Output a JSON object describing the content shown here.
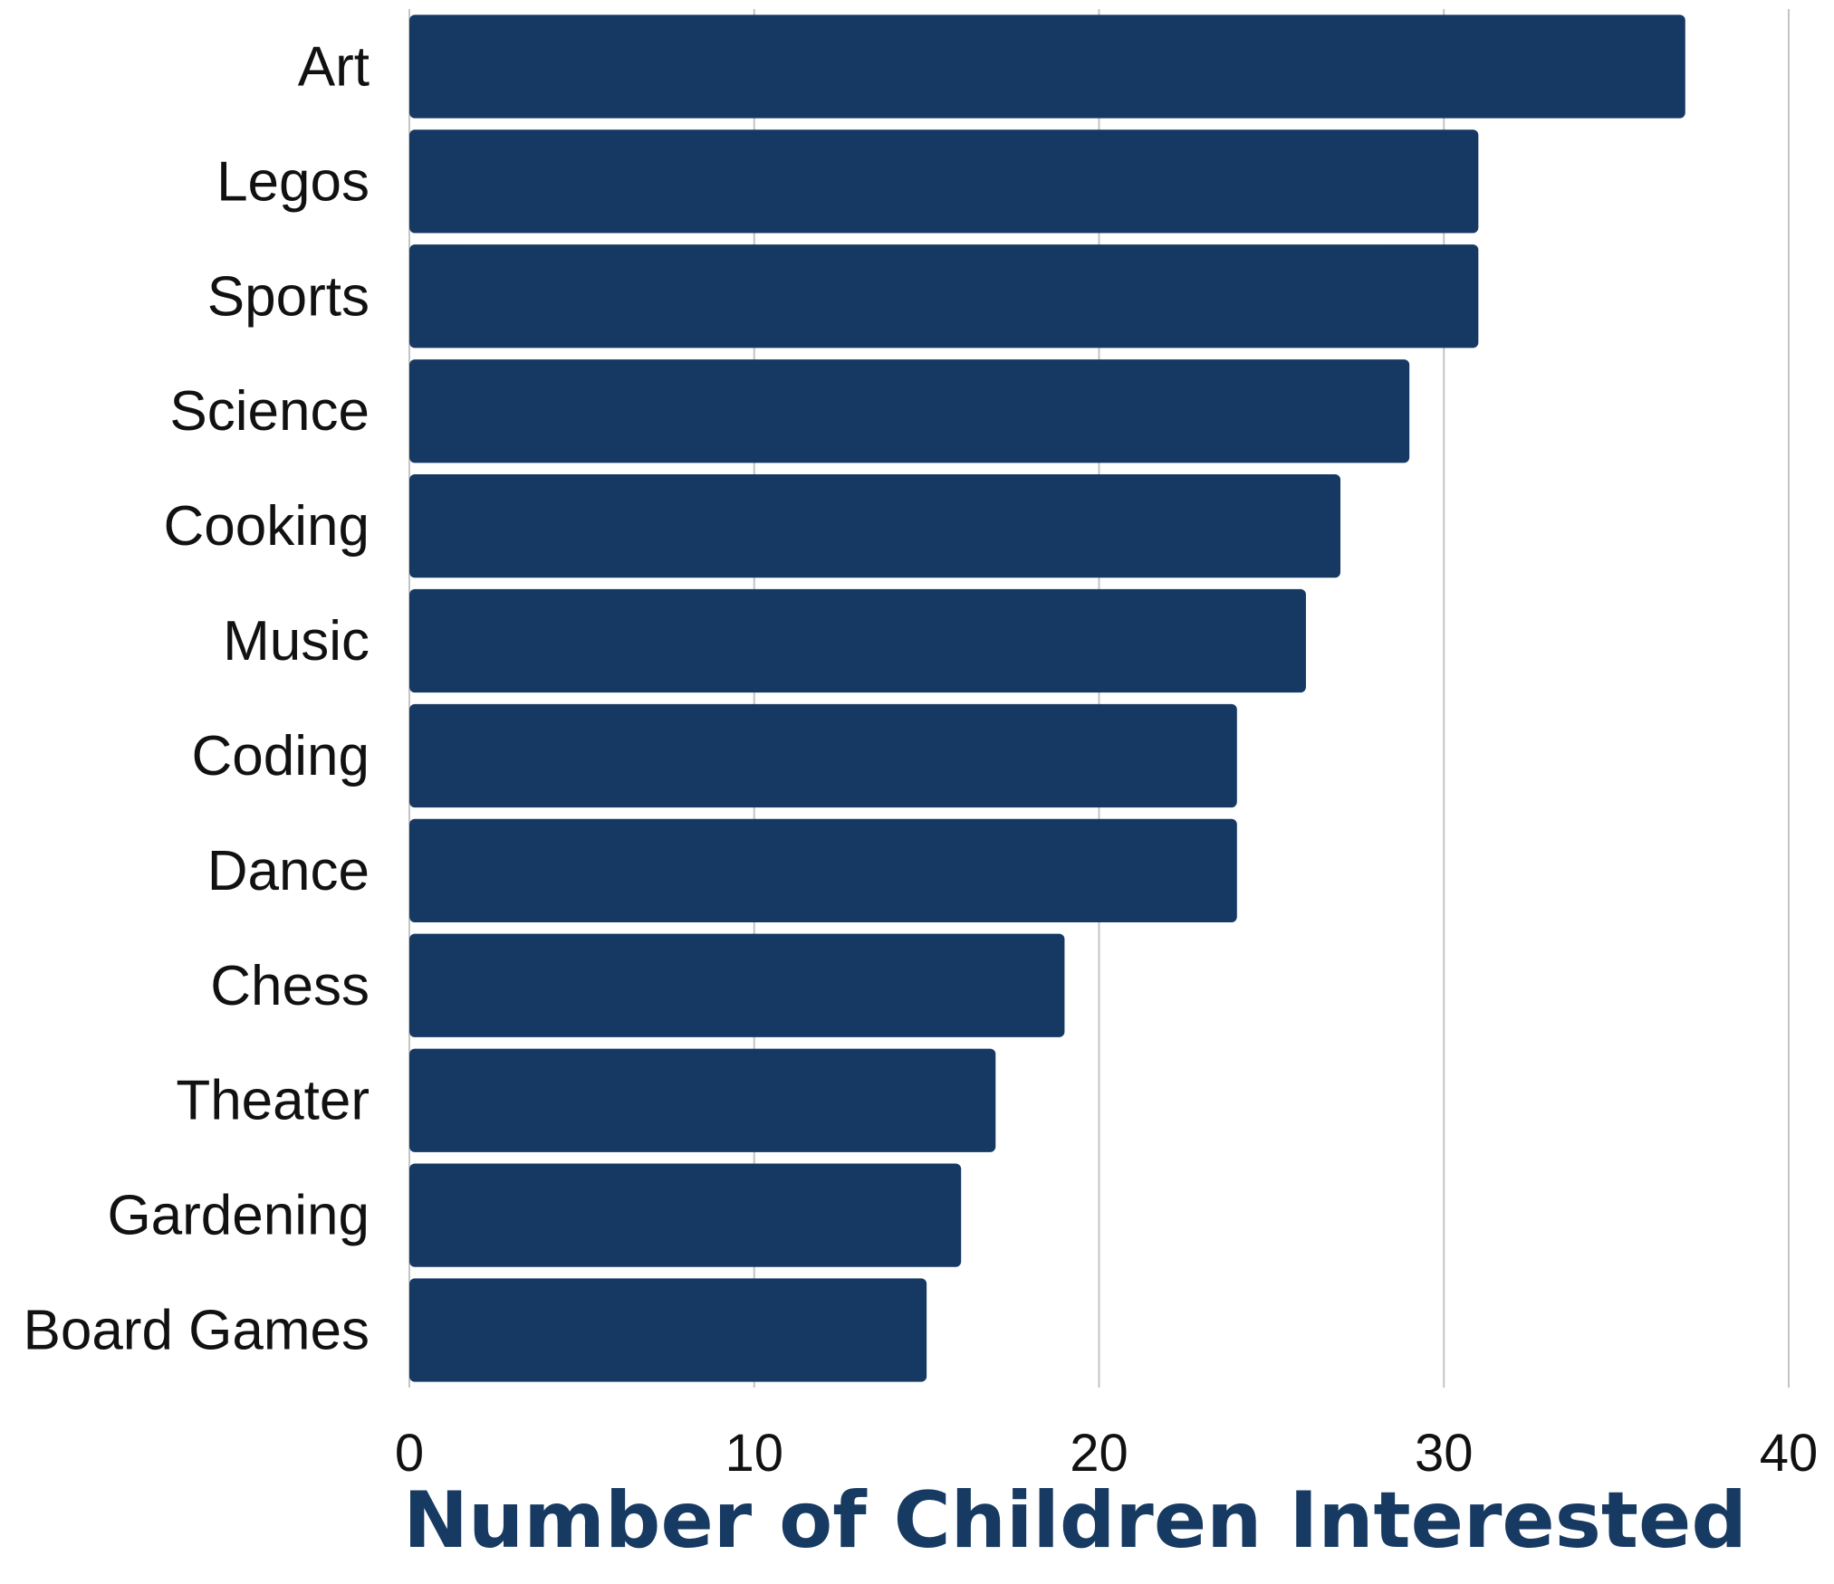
{
  "chart_data": {
    "type": "bar",
    "orientation": "horizontal",
    "categories": [
      "Art",
      "Legos",
      "Sports",
      "Science",
      "Cooking",
      "Music",
      "Coding",
      "Dance",
      "Chess",
      "Theater",
      "Gardening",
      "Board Games"
    ],
    "values": [
      37,
      31,
      31,
      29,
      27,
      26,
      24,
      24,
      19,
      17,
      16,
      15
    ],
    "xlabel": "Number of Children Interested",
    "ylabel": "",
    "xlim": [
      0,
      40
    ],
    "xticks": [
      "0",
      "10",
      "20",
      "30",
      "40"
    ],
    "grid": "vertical",
    "legend": "none"
  },
  "colors": {
    "bar": "#153963",
    "axis_title": "#173a63",
    "gridline": "#c4c4c4",
    "text": "#111111"
  }
}
